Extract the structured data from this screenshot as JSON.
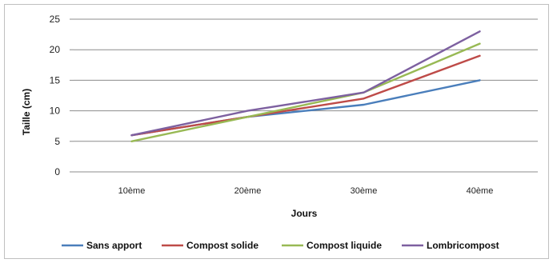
{
  "chart_data": {
    "type": "line",
    "categories": [
      "10ème",
      "20ème",
      "30ème",
      "40ème"
    ],
    "series": [
      {
        "name": "Sans apport",
        "values": [
          6,
          9,
          11,
          15
        ],
        "color": "#4a7ebb"
      },
      {
        "name": "Compost solide",
        "values": [
          6,
          9,
          12,
          19
        ],
        "color": "#be4b48"
      },
      {
        "name": "Compost liquide",
        "values": [
          5,
          9,
          13,
          21
        ],
        "color": "#98b954"
      },
      {
        "name": "Lombricompost",
        "values": [
          6,
          10,
          13,
          23
        ],
        "color": "#7d60a0"
      }
    ],
    "xlabel": "Jours",
    "ylabel": "Taille (cm)",
    "ylim": [
      0,
      25
    ],
    "yticks": [
      0,
      5,
      10,
      15,
      20,
      25
    ],
    "grid": true,
    "legend_position": "bottom"
  }
}
